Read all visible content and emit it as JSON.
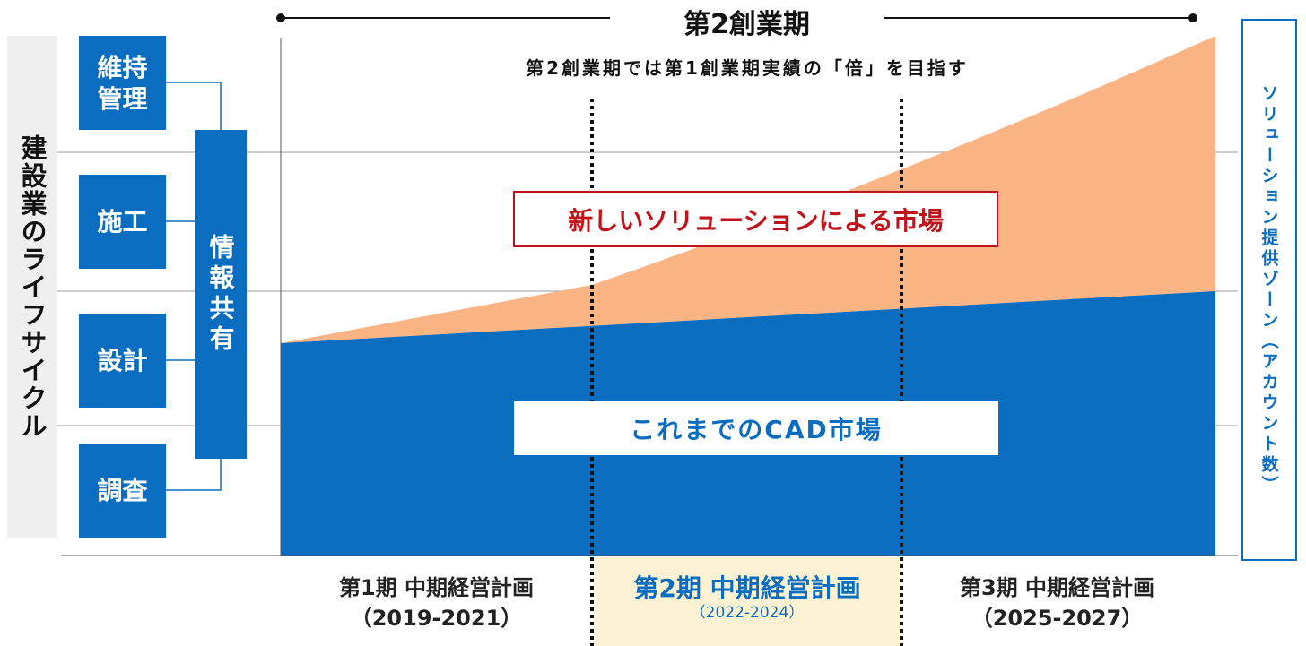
{
  "header": {
    "title": "第2創業期",
    "subtitle": "第2創業期では第1創業期実績の「倍」を目指す"
  },
  "lifecycle": {
    "label": "建設業のライフサイクル",
    "stages": [
      "維持管理",
      "施工",
      "設計",
      "調査"
    ],
    "shared": "情報共有"
  },
  "zones": {
    "new_market": "新しいソリューションによる市場",
    "cad_market": "これまでのCAD市場"
  },
  "axis_label": "ソリューション提供ゾーン（アカウント数）",
  "periods": [
    {
      "name": "第1期 中期経営計画",
      "years": "（2019-2021）"
    },
    {
      "name": "第2期 中期経営計画",
      "years": "（2022-2024）"
    },
    {
      "name": "第3期 中期経営計画",
      "years": "（2025-2027）"
    }
  ]
}
